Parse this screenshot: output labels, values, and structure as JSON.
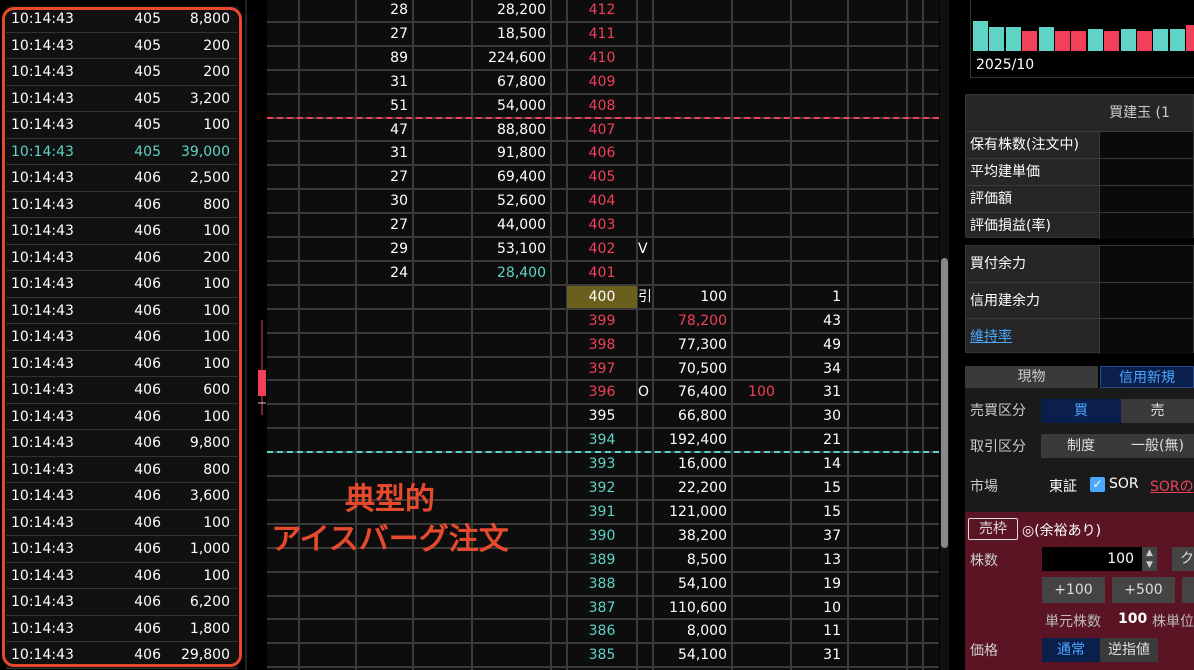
{
  "ticks": [
    {
      "time": "10:14:43",
      "price": "405",
      "volume": "8,800"
    },
    {
      "time": "10:14:43",
      "price": "405",
      "volume": "200"
    },
    {
      "time": "10:14:43",
      "price": "405",
      "volume": "200"
    },
    {
      "time": "10:14:43",
      "price": "405",
      "volume": "3,200"
    },
    {
      "time": "10:14:43",
      "price": "405",
      "volume": "100"
    },
    {
      "time": "10:14:43",
      "price": "405",
      "volume": "39,000",
      "highlight": true
    },
    {
      "time": "10:14:43",
      "price": "406",
      "volume": "2,500"
    },
    {
      "time": "10:14:43",
      "price": "406",
      "volume": "800"
    },
    {
      "time": "10:14:43",
      "price": "406",
      "volume": "100"
    },
    {
      "time": "10:14:43",
      "price": "406",
      "volume": "200"
    },
    {
      "time": "10:14:43",
      "price": "406",
      "volume": "100"
    },
    {
      "time": "10:14:43",
      "price": "406",
      "volume": "100"
    },
    {
      "time": "10:14:43",
      "price": "406",
      "volume": "100"
    },
    {
      "time": "10:14:43",
      "price": "406",
      "volume": "100"
    },
    {
      "time": "10:14:43",
      "price": "406",
      "volume": "600"
    },
    {
      "time": "10:14:43",
      "price": "406",
      "volume": "100"
    },
    {
      "time": "10:14:43",
      "price": "406",
      "volume": "9,800"
    },
    {
      "time": "10:14:43",
      "price": "406",
      "volume": "800"
    },
    {
      "time": "10:14:43",
      "price": "406",
      "volume": "3,600"
    },
    {
      "time": "10:14:43",
      "price": "406",
      "volume": "100"
    },
    {
      "time": "10:14:43",
      "price": "406",
      "volume": "1,000"
    },
    {
      "time": "10:14:43",
      "price": "406",
      "volume": "100"
    },
    {
      "time": "10:14:43",
      "price": "406",
      "volume": "6,200"
    },
    {
      "time": "10:14:43",
      "price": "406",
      "volume": "1,800"
    },
    {
      "time": "10:14:43",
      "price": "406",
      "volume": "29,800"
    }
  ],
  "board": [
    {
      "ask_count": "28",
      "ask_qty": "28,200",
      "price": "412",
      "pc": "red"
    },
    {
      "ask_count": "27",
      "ask_qty": "18,500",
      "price": "411",
      "pc": "red"
    },
    {
      "ask_count": "89",
      "ask_qty": "224,600",
      "price": "410",
      "pc": "red"
    },
    {
      "ask_count": "31",
      "ask_qty": "67,800",
      "price": "409",
      "pc": "red"
    },
    {
      "ask_count": "51",
      "ask_qty": "54,000",
      "price": "408",
      "pc": "red"
    },
    {
      "ask_count": "47",
      "ask_qty": "88,800",
      "price": "407",
      "pc": "red"
    },
    {
      "ask_count": "31",
      "ask_qty": "91,800",
      "price": "406",
      "pc": "red"
    },
    {
      "ask_count": "27",
      "ask_qty": "69,400",
      "price": "405",
      "pc": "red"
    },
    {
      "ask_count": "30",
      "ask_qty": "52,600",
      "price": "404",
      "pc": "red"
    },
    {
      "ask_count": "27",
      "ask_qty": "44,000",
      "price": "403",
      "pc": "red"
    },
    {
      "ask_count": "29",
      "ask_qty": "53,100",
      "price": "402",
      "pc": "red",
      "mark": "V"
    },
    {
      "ask_count": "24",
      "ask_qty": "28,400",
      "price": "401",
      "pc": "red",
      "aqc": "cyan"
    },
    {
      "price": "400",
      "pc": "white",
      "current": true,
      "mark": "引",
      "bid_qty": "100",
      "bid_count": "1"
    },
    {
      "price": "399",
      "pc": "red",
      "bid_qty": "78,200",
      "bqc": "red",
      "bid_count": "43"
    },
    {
      "price": "398",
      "pc": "red",
      "bid_qty": "77,300",
      "bid_count": "49"
    },
    {
      "price": "397",
      "pc": "red",
      "bid_qty": "70,500",
      "bid_count": "34"
    },
    {
      "price": "396",
      "pc": "red",
      "mark": "O",
      "bid_qty": "76,400",
      "own": "100",
      "bid_count": "31"
    },
    {
      "price": "395",
      "pc": "white",
      "bid_qty": "66,800",
      "bid_count": "30"
    },
    {
      "price": "394",
      "pc": "cyan",
      "bid_qty": "192,400",
      "bid_count": "21"
    },
    {
      "price": "393",
      "pc": "cyan",
      "bid_qty": "16,000",
      "bid_count": "14"
    },
    {
      "price": "392",
      "pc": "cyan",
      "bid_qty": "22,200",
      "bid_count": "15"
    },
    {
      "price": "391",
      "pc": "cyan",
      "bid_qty": "121,000",
      "bid_count": "15"
    },
    {
      "price": "390",
      "pc": "cyan",
      "bid_qty": "38,200",
      "bid_count": "37"
    },
    {
      "price": "389",
      "pc": "cyan",
      "bid_qty": "8,500",
      "bid_count": "13"
    },
    {
      "price": "388",
      "pc": "cyan",
      "bid_qty": "54,100",
      "bid_count": "19"
    },
    {
      "price": "387",
      "pc": "cyan",
      "bid_qty": "110,600",
      "bid_count": "10"
    },
    {
      "price": "386",
      "pc": "cyan",
      "bid_qty": "8,000",
      "bid_count": "11"
    },
    {
      "price": "385",
      "pc": "cyan",
      "bid_qty": "54,100",
      "bid_count": "31"
    }
  ],
  "colors": {
    "up": "#f0405a",
    "down": "#5fd3c5",
    "annotation": "#e6492e",
    "current_price_bg": "#6b5f1e"
  },
  "annotation": {
    "line1": "典型的",
    "line2": "アイスバーグ注文"
  },
  "mini_chart": {
    "label": "2025/10",
    "bars": [
      "cyan",
      "cyan",
      "cyan",
      "red",
      "cyan",
      "red",
      "red",
      "cyan",
      "red",
      "cyan",
      "red",
      "cyan",
      "cyan",
      "red"
    ]
  },
  "position": {
    "header": "買建玉 (1",
    "rows": [
      "保有株数(注文中)",
      "平均建単価",
      "評価額",
      "評価損益(率)"
    ]
  },
  "power": {
    "rows": [
      "買付余力",
      "信用建余力"
    ],
    "link": "維持率"
  },
  "order": {
    "tab_cash": "現物",
    "tab_margin": "信用新規",
    "side_label": "売買区分",
    "buy": "買",
    "sell": "売",
    "trade_label": "取引区分",
    "system": "制度",
    "general": "一般(無)",
    "market_label": "市場",
    "market": "東証",
    "sor": "SOR",
    "sor_link": "SORの",
    "sell_limit": "売枠",
    "sell_limit_status": "◎(余裕あり)",
    "qty_label": "株数",
    "qty": "100",
    "qty_btn_cut": "ク",
    "plus100": "+100",
    "plus500": "+500",
    "unit_label": "単元株数",
    "unit": "100",
    "unit_suffix": "株単位",
    "price_label": "価格",
    "normal": "通常",
    "stop": "逆指値"
  }
}
